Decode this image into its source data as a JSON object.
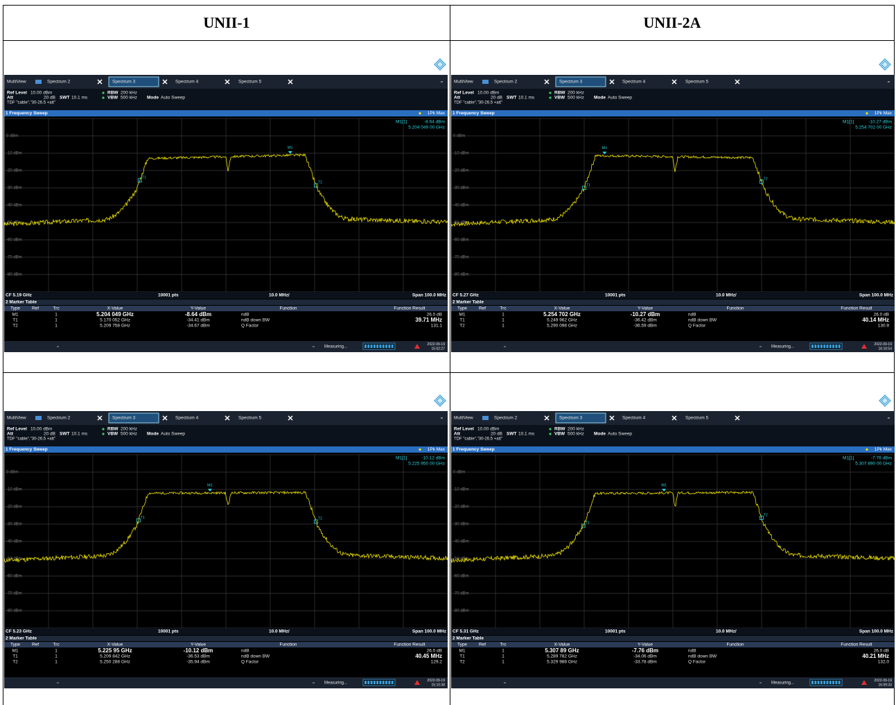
{
  "header": {
    "col1": "UNII-1",
    "col2": "UNII-2A"
  },
  "ui": {
    "multiview": "MultiView",
    "tabs": [
      "Spectrum 2",
      "Spectrum 3",
      "Spectrum 4",
      "Spectrum 5"
    ],
    "ref_level_label": "Ref Level",
    "ref_level": "10.00 dBm",
    "rbw_label": "RBW",
    "rbw": "200 kHz",
    "att_label": "Att",
    "att": "20 dB",
    "swt_label": "SWT",
    "swt": "10.1 ms",
    "vbw_label": "VBW",
    "vbw": "500 kHz",
    "mode_label": "Mode",
    "mode": "Auto Sweep",
    "tdf": "TDF \"cable\",\"30-26.5 +att\"",
    "sweep_title": "1 Frequency Sweep",
    "trace_mode": "1Pk Max",
    "marker_ref": "M1[1]",
    "y_labels": [
      "0 dBm",
      "-10 dBm",
      "-20 dBm",
      "-30 dBm",
      "-40 dBm",
      "-50 dBm",
      "-60 dBm",
      "-70 dBm",
      "-80 dBm"
    ],
    "pts": "10001 pts",
    "div": "10.0 MHz/",
    "span": "Span 100.0 MHz",
    "marker_table_title": "2 Marker Table",
    "columns": [
      "Type",
      "Ref",
      "Trc",
      "X-Value",
      "Y-Value",
      "Function",
      "Function Result"
    ],
    "row_types": [
      "M1",
      "T1",
      "T2"
    ],
    "trc": "1",
    "functions": [
      "ndB",
      "ndB down BW",
      "Q Factor"
    ],
    "measuring": "Measuring...",
    "markers": [
      "M1",
      "T1",
      "T2"
    ]
  },
  "panels": [
    {
      "cf": "CF 5.19 GHz",
      "marker_level": "-8.64 dBm",
      "marker_freq": "5.204 049 00 GHz",
      "rows": [
        [
          "5.204 049 GHz",
          "-8.64 dBm",
          "26.0 dB"
        ],
        [
          "5.170 052 GHz",
          "-34.41 dBm",
          "39.71 MHz"
        ],
        [
          "5.209 758 GHz",
          "-34.67 dBm",
          "131.1"
        ]
      ],
      "date": "2022-09-19",
      "time": "15:02:27"
    },
    {
      "cf": "CF 5.27 GHz",
      "marker_level": "-10.27 dBm",
      "marker_freq": "5.254 702 00 GHz",
      "rows": [
        [
          "5.254 702 GHz",
          "-10.27 dBm",
          "26.0 dB"
        ],
        [
          "5.249 962 GHz",
          "-36.42 dBm",
          "40.14 MHz"
        ],
        [
          "5.290 098 GHz",
          "-36.59 dBm",
          "130.9"
        ]
      ],
      "date": "2022-09-19",
      "time": "16:16:54"
    },
    {
      "cf": "CF 5.23 GHz",
      "marker_level": "-10.12 dBm",
      "marker_freq": "5.225 950 00 GHz",
      "rows": [
        [
          "5.225 95 GHz",
          "-10.12 dBm",
          "26.0 dB"
        ],
        [
          "5.209 842 GHz",
          "-36.53 dBm",
          "40.45 MHz"
        ],
        [
          "5.250 288 GHz",
          "-35.94 dBm",
          "129.2"
        ]
      ],
      "date": "2022-09-19",
      "time": "15:10:38"
    },
    {
      "cf": "CF 5.31 GHz",
      "marker_level": "-7.76 dBm",
      "marker_freq": "5.307 890 00 GHz",
      "rows": [
        [
          "5.307 89 GHz",
          "-7.76 dBm",
          "26.0 dB"
        ],
        [
          "5.289 782 GHz",
          "-34.06 dBm",
          "40.21 MHz"
        ],
        [
          "5.329 988 GHz",
          "-33.78 dBm",
          "132.0"
        ]
      ],
      "date": "2022-09-19",
      "time": "16:09:33"
    }
  ]
}
